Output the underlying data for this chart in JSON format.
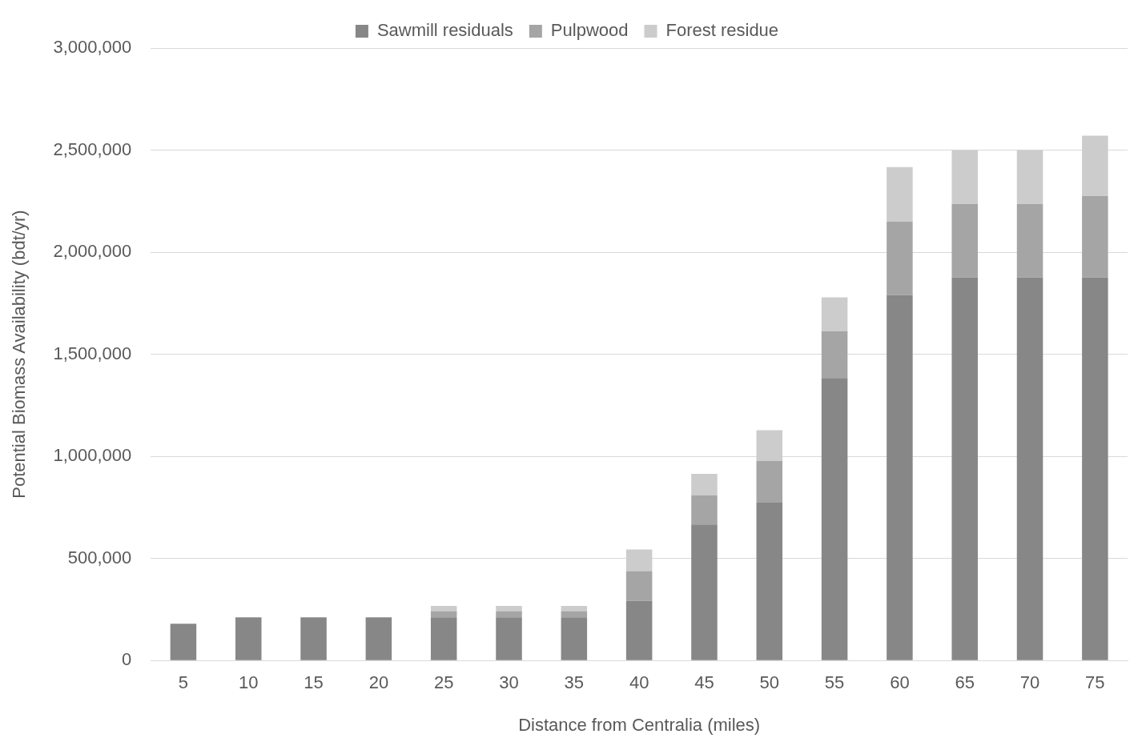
{
  "chart_data": {
    "type": "bar",
    "xlabel": "Distance from Centralia (miles)",
    "ylabel": "Potential Biomass Availability (bdt/yr)",
    "categories": [
      "5",
      "10",
      "15",
      "20",
      "25",
      "30",
      "35",
      "40",
      "45",
      "50",
      "55",
      "60",
      "65",
      "70",
      "75"
    ],
    "stacked": true,
    "series": [
      {
        "name": "Sawmill residuals",
        "color": "#878787",
        "values": [
          180000,
          212000,
          212000,
          212000,
          212000,
          212000,
          212000,
          292000,
          666000,
          773000,
          1384000,
          1790000,
          1877000,
          1877000,
          1877000
        ]
      },
      {
        "name": "Pulpwood",
        "color": "#a5a5a5",
        "values": [
          0,
          0,
          0,
          0,
          30000,
          30000,
          30000,
          146000,
          142000,
          205000,
          229000,
          359000,
          359000,
          359000,
          398000
        ]
      },
      {
        "name": "Forest residue",
        "color": "#cccccc",
        "values": [
          0,
          0,
          0,
          0,
          25000,
          25000,
          25000,
          106000,
          106000,
          150000,
          166000,
          268000,
          264000,
          264000,
          296000
        ]
      }
    ],
    "ylim": [
      0,
      3000000
    ],
    "yticks": [
      0,
      {
        "value": 500000,
        "label": "500,000"
      },
      {
        "value": 1000000,
        "label": "1,000,000"
      },
      {
        "value": 1500000,
        "label": "1,500,000"
      },
      {
        "value": 2000000,
        "label": "2,000,000"
      },
      {
        "value": 2500000,
        "label": "2,500,000"
      },
      {
        "value": 3000000,
        "label": "3,000,000"
      }
    ],
    "grid": "y",
    "legend": "top"
  }
}
